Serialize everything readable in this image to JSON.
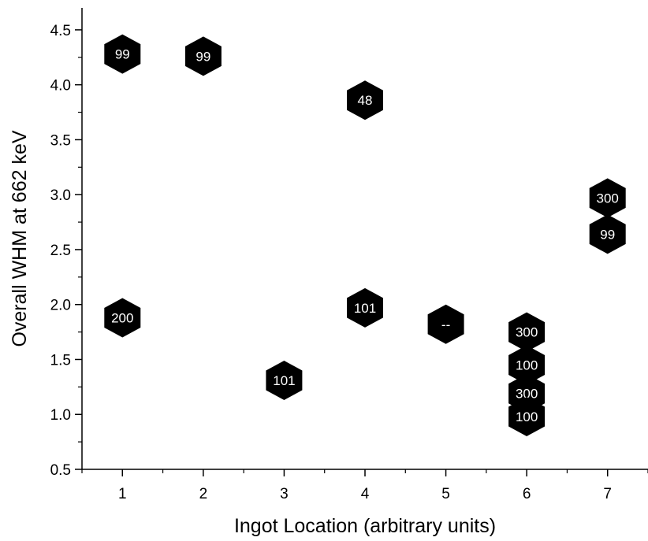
{
  "chart_data": {
    "type": "scatter",
    "title": "",
    "xlabel": "Ingot Location (arbitrary units)",
    "ylabel": "Overall WHM at 662 keV",
    "xlim": [
      0.5,
      7.5
    ],
    "ylim": [
      0.5,
      4.7
    ],
    "xticks": [
      1,
      2,
      3,
      4,
      5,
      6,
      7
    ],
    "yticks": [
      0.5,
      1.0,
      1.5,
      2.0,
      2.5,
      3.0,
      3.5,
      4.0,
      4.5
    ],
    "ytick_labels": [
      "0.5",
      "1.0",
      "1.5",
      "2.0",
      "2.5",
      "3.0",
      "3.5",
      "4.0",
      "4.5"
    ],
    "marker": "hexagon",
    "marker_color": "#000000",
    "label_color": "#ffffff",
    "grid": false,
    "points": [
      {
        "x": 1,
        "y": 4.28,
        "label": "99"
      },
      {
        "x": 2,
        "y": 4.26,
        "label": "99"
      },
      {
        "x": 4,
        "y": 3.86,
        "label": "48"
      },
      {
        "x": 7,
        "y": 2.97,
        "label": "300"
      },
      {
        "x": 7,
        "y": 2.64,
        "label": "99"
      },
      {
        "x": 1,
        "y": 1.88,
        "label": "200"
      },
      {
        "x": 4,
        "y": 1.97,
        "label": "101"
      },
      {
        "x": 5,
        "y": 1.82,
        "label": "--"
      },
      {
        "x": 6,
        "y": 1.75,
        "label": "300"
      },
      {
        "x": 3,
        "y": 1.31,
        "label": "101"
      },
      {
        "x": 6,
        "y": 1.45,
        "label": "100"
      },
      {
        "x": 6,
        "y": 1.19,
        "label": "300"
      },
      {
        "x": 6,
        "y": 0.98,
        "label": "100"
      }
    ]
  }
}
